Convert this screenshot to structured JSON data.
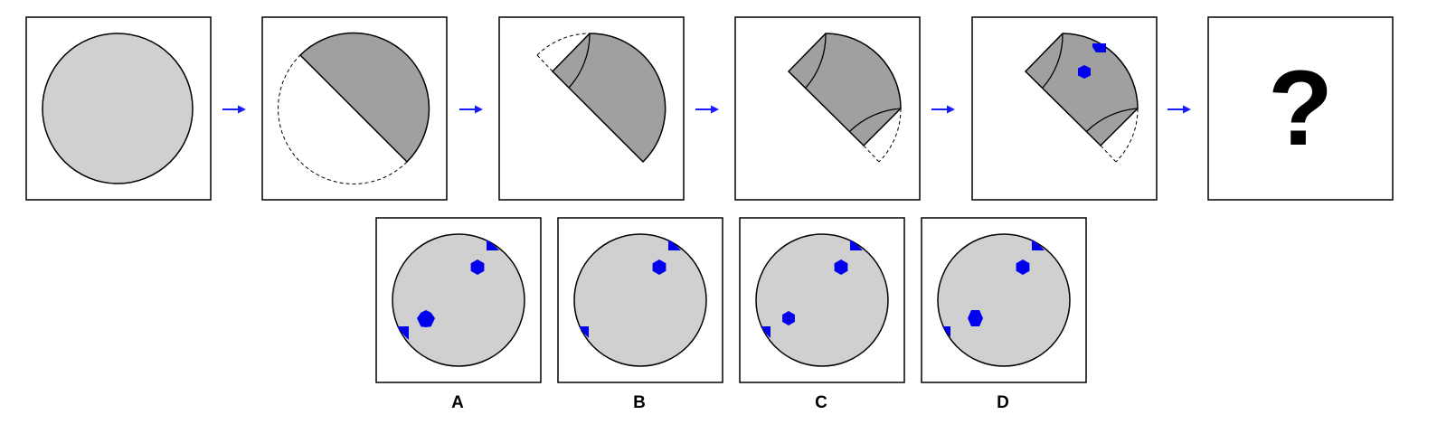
{
  "question_mark": "?",
  "options": [
    {
      "label": "A"
    },
    {
      "label": "B"
    },
    {
      "label": "C"
    },
    {
      "label": "D"
    }
  ],
  "colors": {
    "paper_light": "#d0d0d0",
    "paper_folded": "#a0a0a0",
    "hole": "#0000ee",
    "arrow": "#1a1aff",
    "outline": "#000000"
  },
  "icons": [
    "arrow-right-icon",
    "hexagon-hole-icon",
    "corner-notch-icon"
  ]
}
